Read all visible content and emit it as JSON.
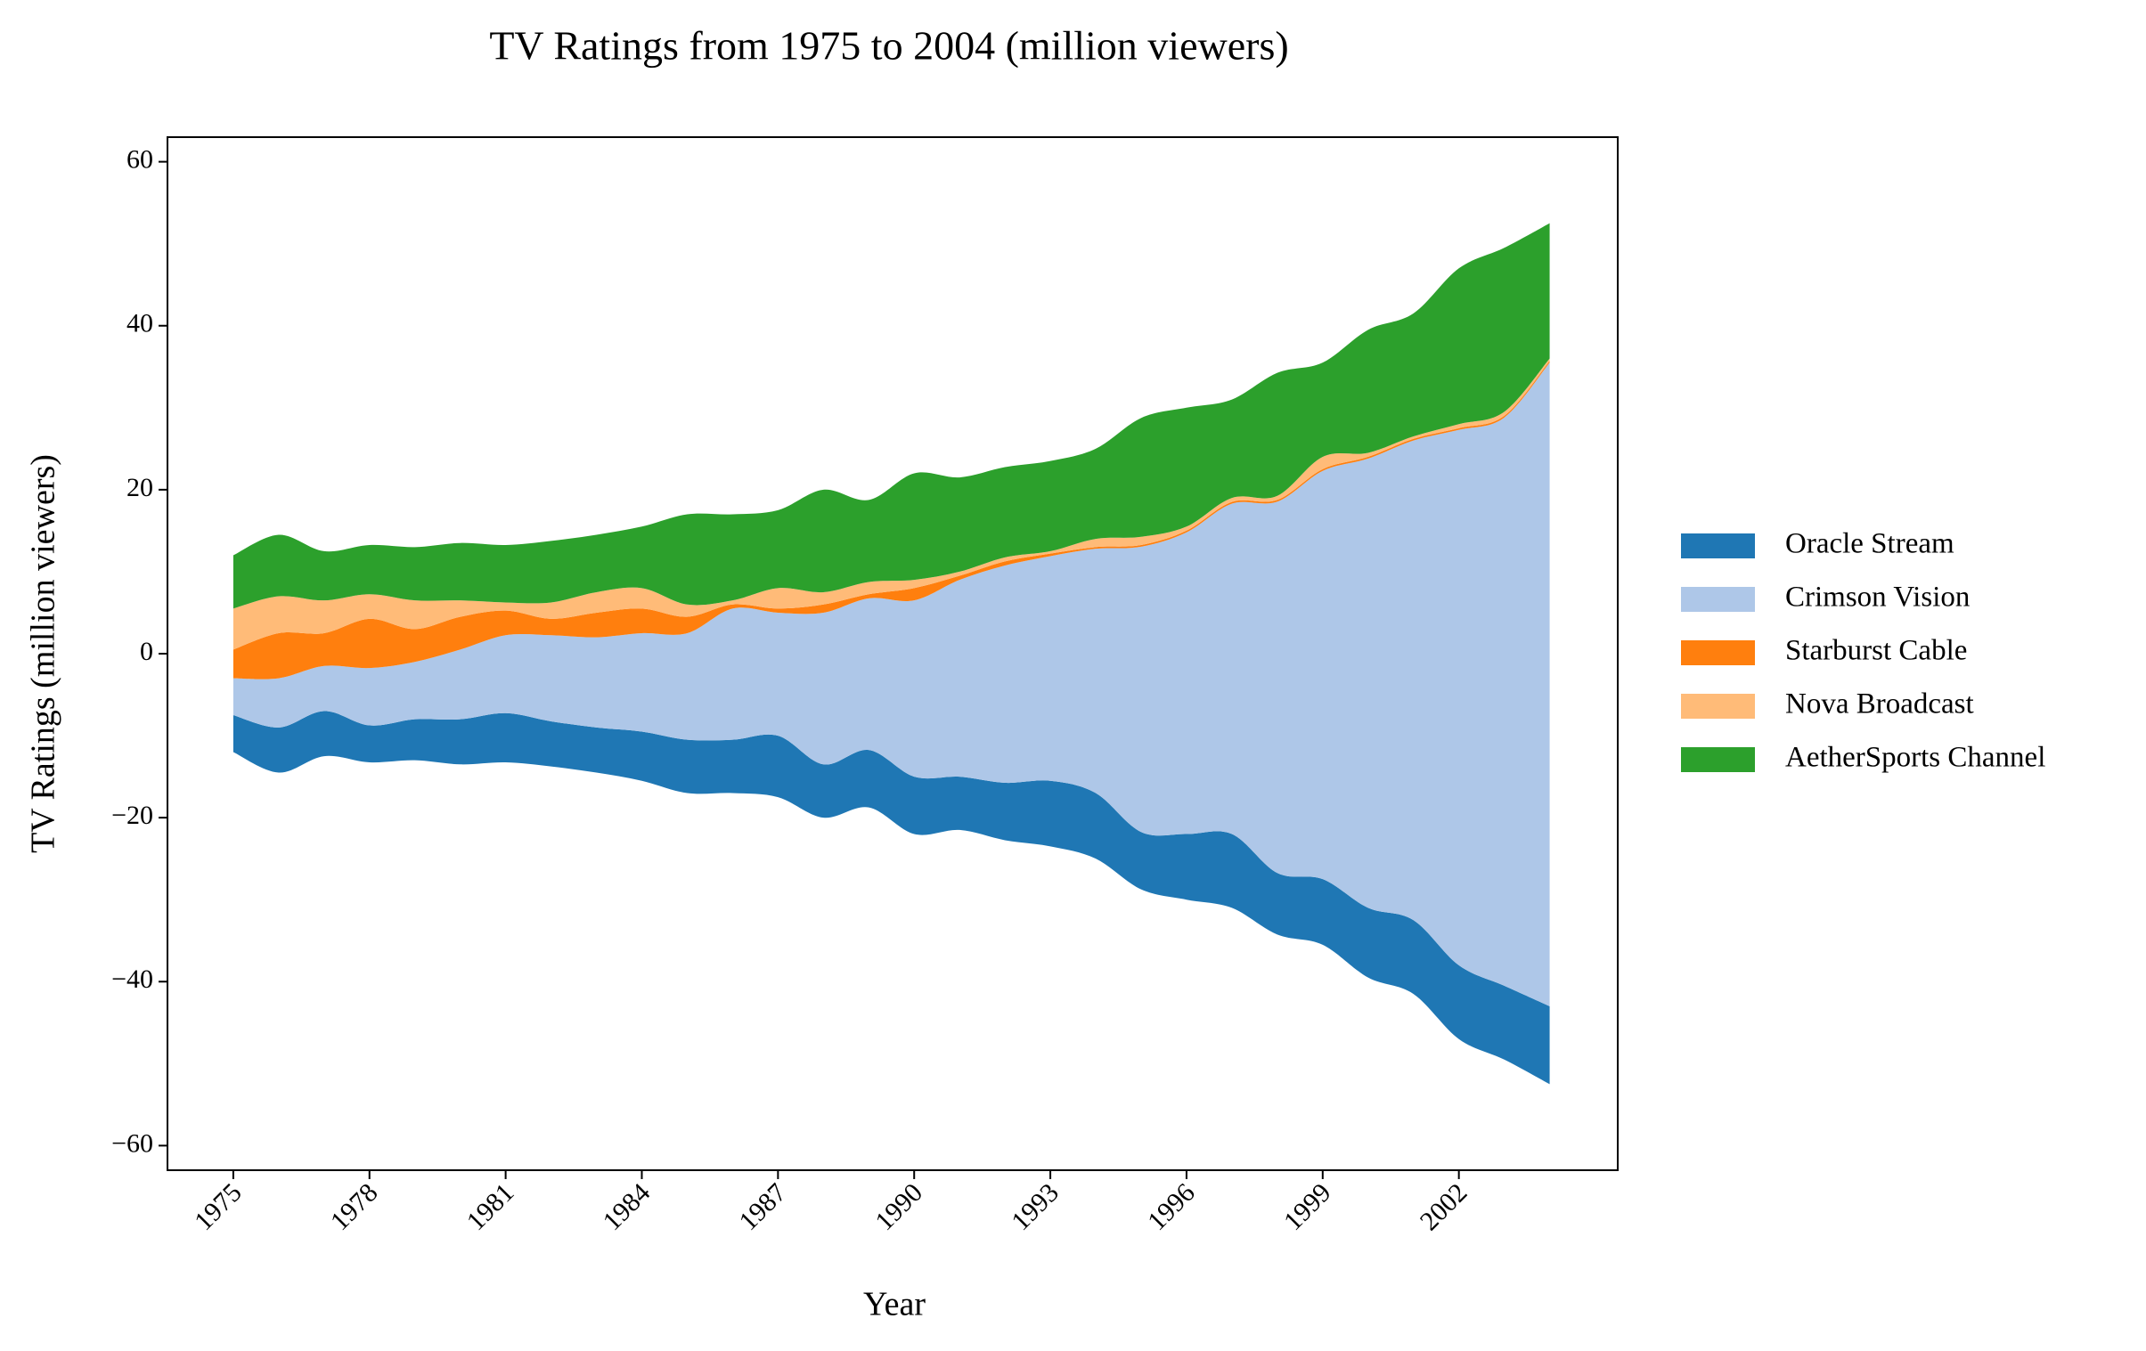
{
  "chart_data": {
    "type": "streamgraph",
    "title": "TV Ratings from 1975 to 2004 (million viewers)",
    "x_label": "Year",
    "y_label": "TV Ratings (million viewers)",
    "x": [
      1975,
      1976,
      1977,
      1978,
      1979,
      1980,
      1981,
      1982,
      1983,
      1984,
      1985,
      1986,
      1987,
      1988,
      1989,
      1990,
      1991,
      1992,
      1993,
      1994,
      1995,
      1996,
      1997,
      1998,
      1999,
      2000,
      2001,
      2002,
      2003,
      2004
    ],
    "series": [
      {
        "name": "Oracle Stream",
        "color": "#1f77b4",
        "values": [
          4.5,
          5.5,
          5.5,
          4.5,
          5,
          5.5,
          6,
          5.5,
          5.5,
          6,
          6.5,
          6.5,
          7.5,
          6.5,
          7,
          7,
          6.5,
          7,
          8,
          8,
          7,
          8,
          9,
          7.5,
          8,
          8.5,
          9,
          9,
          9,
          9.5
        ]
      },
      {
        "name": "Crimson Vision",
        "color": "#aec7e8",
        "values": [
          4.5,
          6,
          5.5,
          7,
          7,
          8.5,
          9.5,
          10.5,
          11,
          12,
          13,
          16,
          15,
          18.5,
          18.5,
          21.5,
          24,
          26.5,
          27.4,
          29.8,
          34.8,
          36.8,
          40.3,
          45.3,
          49.8,
          54.8,
          58.5,
          65.3,
          69.3,
          78.5
        ]
      },
      {
        "name": "Starburst Cable",
        "color": "#ff7f0e",
        "values": [
          3.5,
          5.5,
          4,
          6,
          4,
          4,
          3,
          2,
          3,
          3,
          2,
          0.5,
          0.5,
          1,
          0.5,
          1.5,
          0.5,
          0.5,
          0.3,
          0.2,
          0.2,
          0.2,
          0.2,
          0.2,
          0.2,
          0.2,
          0.2,
          0.2,
          0.2,
          0.2
        ]
      },
      {
        "name": "Nova Broadcast",
        "color": "#ffbb78",
        "values": [
          5,
          4.5,
          4,
          3,
          3.5,
          2,
          1,
          2,
          2.5,
          2.5,
          1.5,
          0.5,
          2.5,
          1.5,
          1.5,
          1,
          0.5,
          0.5,
          0.3,
          1,
          1,
          0.5,
          0.5,
          0.5,
          1.5,
          0.5,
          0.3,
          0.5,
          0.5,
          0.3
        ]
      },
      {
        "name": "AetherSports Channel",
        "color": "#2ca02c",
        "values": [
          6.5,
          7.5,
          6,
          6,
          6.5,
          7,
          7,
          7.5,
          7,
          7.5,
          11,
          10.5,
          9.5,
          12.5,
          10,
          13,
          11.5,
          11,
          11,
          11,
          14.5,
          14.5,
          12,
          15,
          11.5,
          15,
          15,
          19,
          20,
          16.5
        ]
      }
    ],
    "xlim": [
      1973.55,
      2005.5
    ],
    "xticks": [
      1975,
      1978,
      1981,
      1984,
      1987,
      1990,
      1993,
      1996,
      1999,
      2002
    ],
    "ylim": [
      -63,
      63
    ],
    "yticks": [
      -60,
      -40,
      -20,
      0,
      20,
      40,
      60
    ],
    "legend": "right"
  }
}
